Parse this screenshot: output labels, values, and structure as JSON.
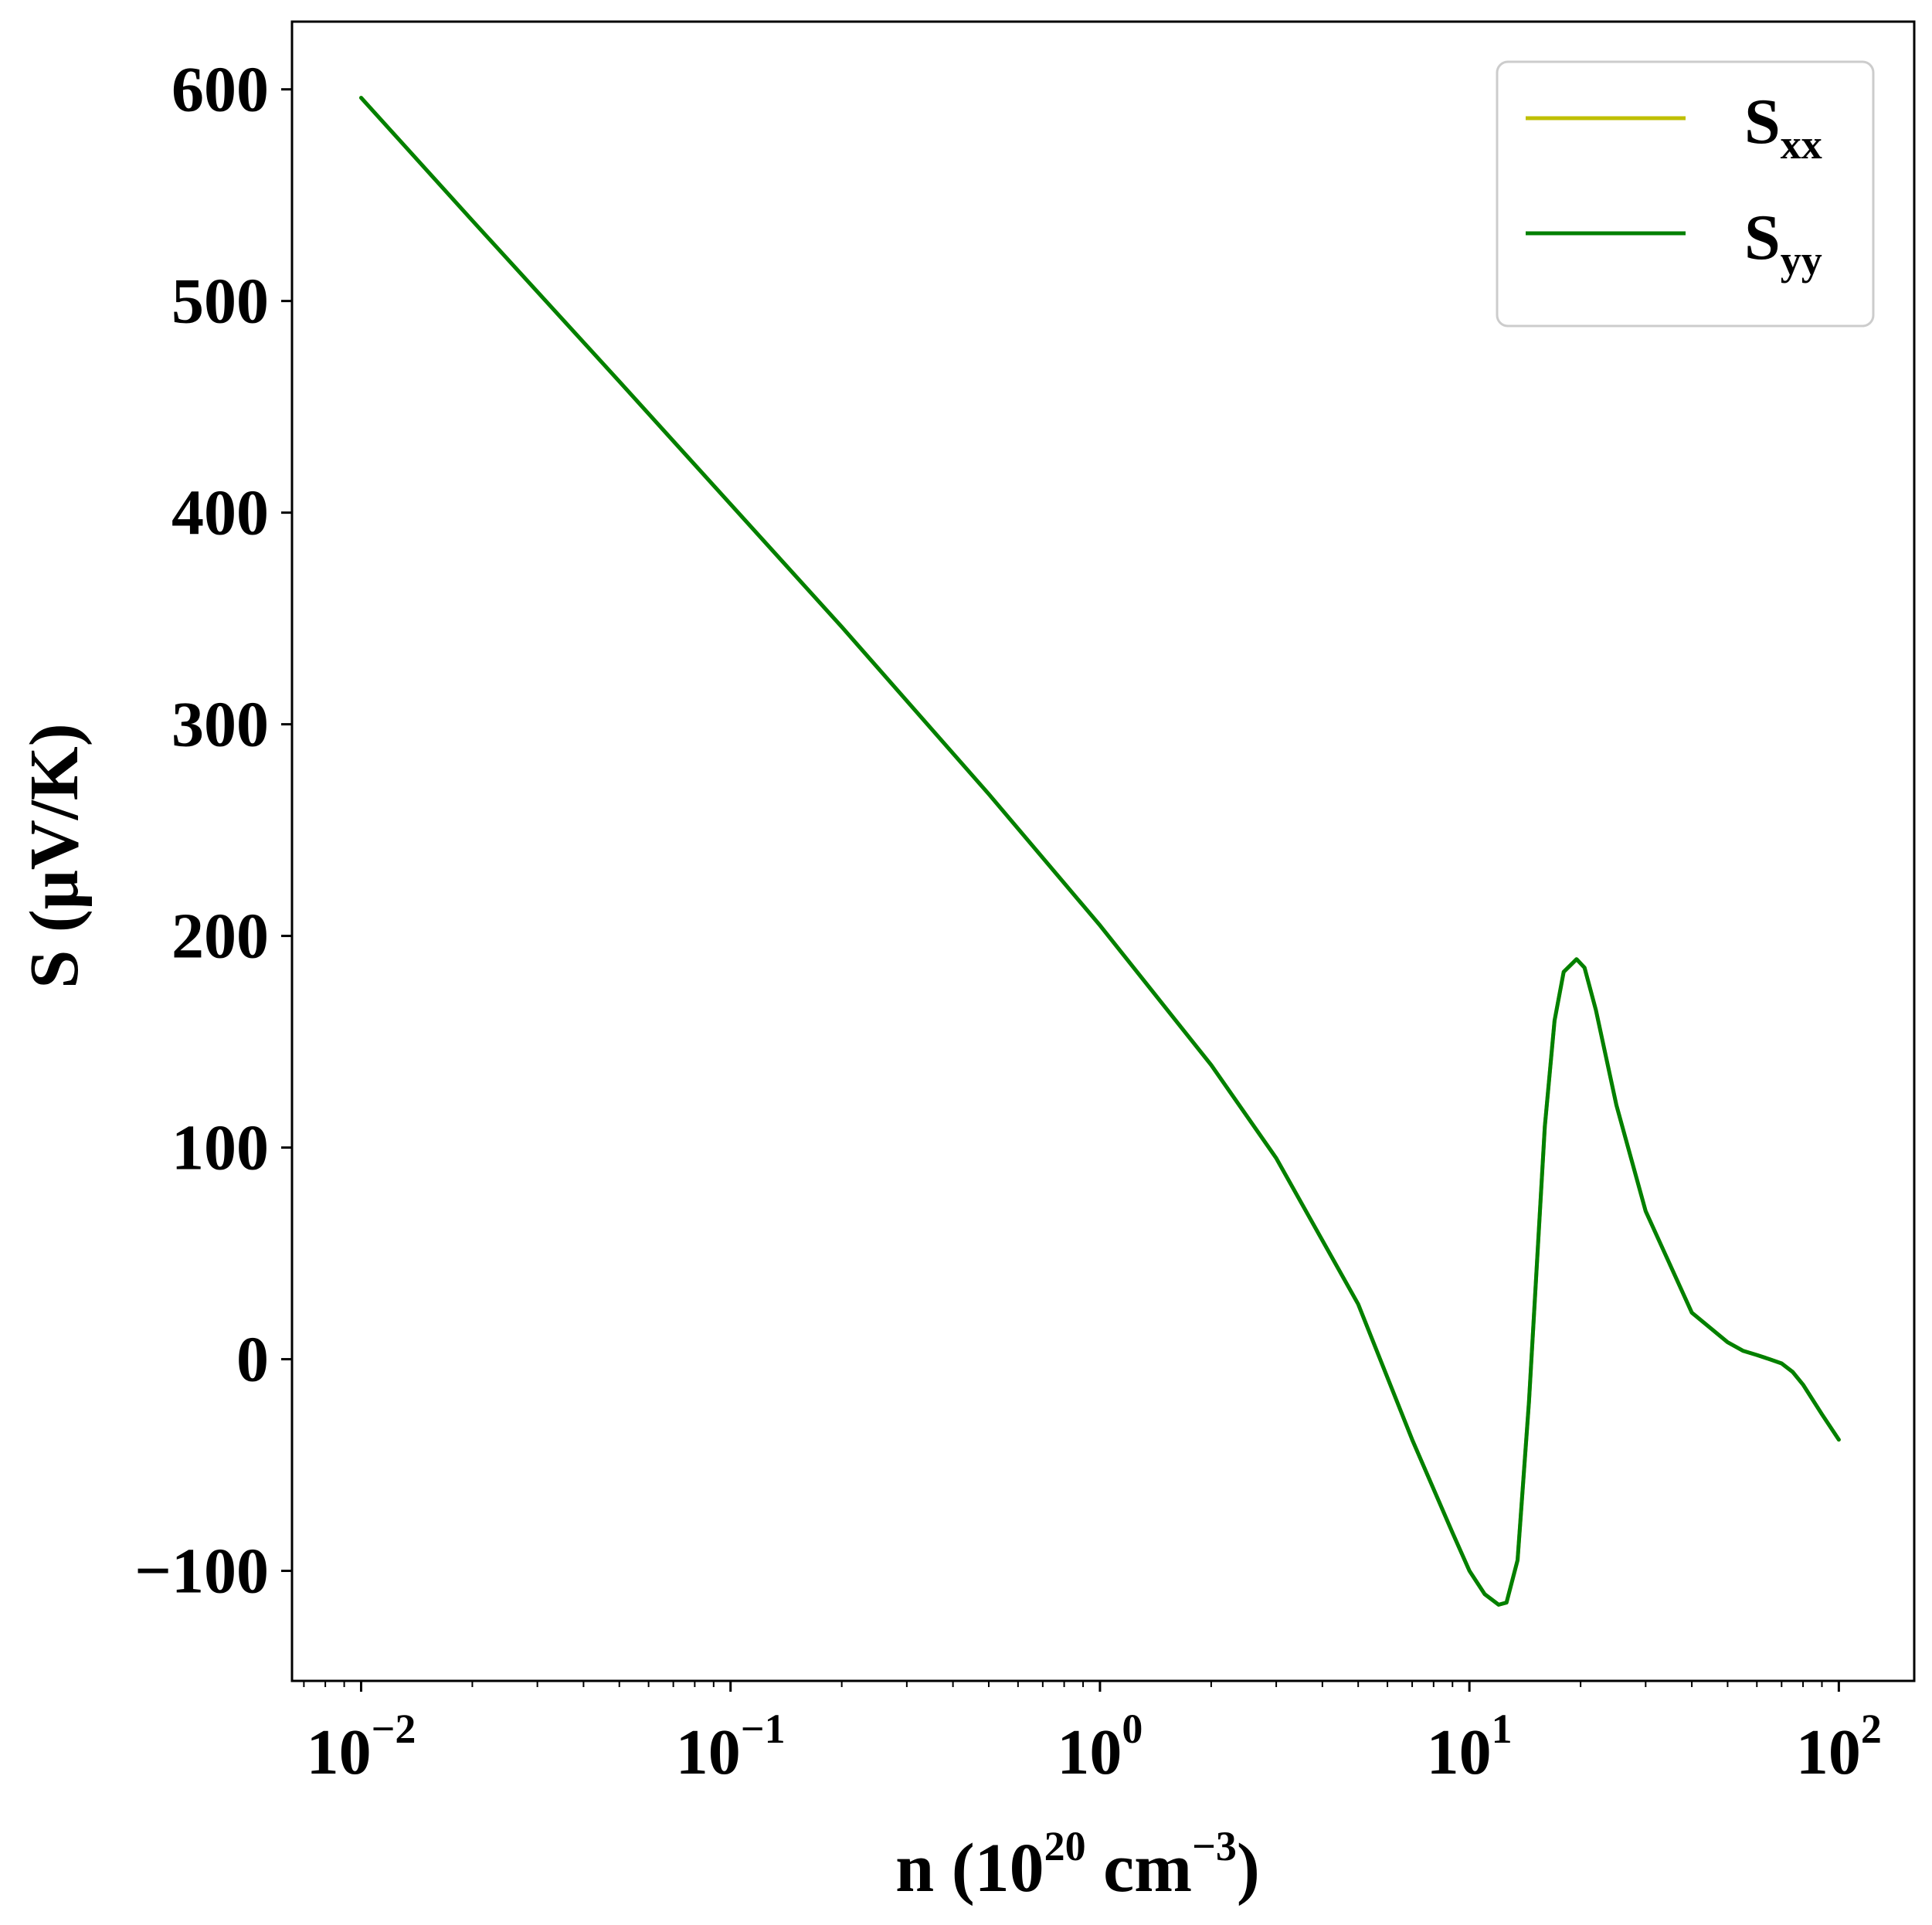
{
  "chart_data": {
    "type": "line",
    "xscale": "log",
    "xlim": [
      0.0065,
      160
    ],
    "ylim": [
      -152,
      632
    ],
    "grid": false,
    "legend_position": "top-right",
    "xlabel": {
      "main": "n (10",
      "sup1": "20",
      "mid": " cm",
      "sup2": "−3",
      "end": ")"
    },
    "ylabel": "S (μV/K)",
    "x_ticks": [
      {
        "value": 0.01,
        "base": "10",
        "exp": "−2"
      },
      {
        "value": 0.1,
        "base": "10",
        "exp": "−1"
      },
      {
        "value": 1,
        "base": "10",
        "exp": "0"
      },
      {
        "value": 10,
        "base": "10",
        "exp": "1"
      },
      {
        "value": 100,
        "base": "10",
        "exp": "2"
      }
    ],
    "y_ticks": [
      {
        "value": 600,
        "label": "600"
      },
      {
        "value": 500,
        "label": "500"
      },
      {
        "value": 400,
        "label": "400"
      },
      {
        "value": 300,
        "label": "300"
      },
      {
        "value": 200,
        "label": "200"
      },
      {
        "value": 100,
        "label": "100"
      },
      {
        "value": 0,
        "label": "0"
      },
      {
        "value": -100,
        "label": "−100"
      }
    ],
    "x": [
      0.01,
      0.02,
      0.05,
      0.1,
      0.2,
      0.5,
      1,
      2,
      3,
      5,
      7,
      9,
      10,
      11,
      12,
      12.6,
      13.5,
      14.5,
      16,
      17,
      18,
      19.5,
      20.5,
      22,
      25,
      30,
      40,
      50,
      55,
      60,
      65,
      70,
      75,
      80,
      90,
      100
    ],
    "series": [
      {
        "name": "S",
        "sub": "xx",
        "color": "#bfbf00",
        "values": [
          596,
          538,
          462,
          404,
          346,
          267,
          205,
          139,
          95,
          26,
          -38,
          -82,
          -100,
          -111,
          -116,
          -115,
          -95,
          -20,
          110,
          160,
          183,
          189,
          185,
          165,
          120,
          70,
          22,
          8,
          4,
          2,
          0,
          -2,
          -6,
          -12,
          -26,
          -38
        ]
      },
      {
        "name": "S",
        "sub": "yy",
        "color": "#008000",
        "values": [
          596,
          538,
          462,
          404,
          346,
          267,
          205,
          139,
          95,
          26,
          -38,
          -82,
          -100,
          -111,
          -116,
          -115,
          -95,
          -20,
          110,
          160,
          183,
          189,
          185,
          165,
          120,
          70,
          22,
          8,
          4,
          2,
          0,
          -2,
          -6,
          -12,
          -26,
          -38
        ]
      }
    ]
  }
}
